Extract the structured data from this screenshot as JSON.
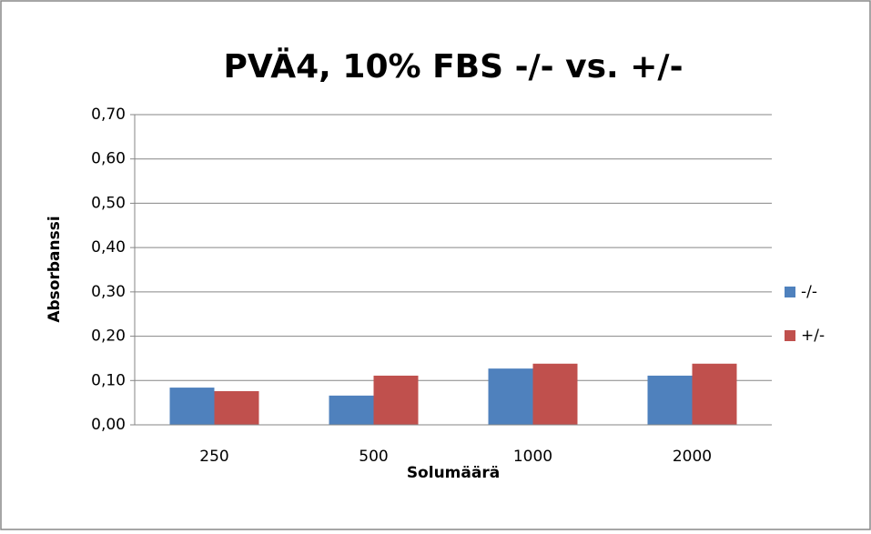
{
  "chart_data": {
    "type": "bar",
    "title": "PVÄ4, 10% FBS -/- vs. +/-",
    "x_label": "Solumäärä",
    "y_label": "Absorbanssi",
    "categories": [
      "250",
      "500",
      "1000",
      "2000"
    ],
    "series": [
      {
        "name": "-/-",
        "color": "#4f81bd",
        "values": [
          0.084,
          0.066,
          0.127,
          0.111
        ]
      },
      {
        "name": "+/-",
        "color": "#c0504d",
        "values": [
          0.076,
          0.111,
          0.138,
          0.138
        ]
      }
    ],
    "ylim": [
      0,
      0.7
    ],
    "yticks": [
      {
        "value": 0,
        "label": "0,00"
      },
      {
        "value": 0.1,
        "label": "0,10"
      },
      {
        "value": 0.2,
        "label": "0,20"
      },
      {
        "value": 0.3,
        "label": "0,30"
      },
      {
        "value": 0.4,
        "label": "0,40"
      },
      {
        "value": 0.5,
        "label": "0,50"
      },
      {
        "value": 0.6,
        "label": "0,60"
      },
      {
        "value": 0.7,
        "label": "0,70"
      }
    ],
    "grid": true,
    "legend": "right"
  }
}
